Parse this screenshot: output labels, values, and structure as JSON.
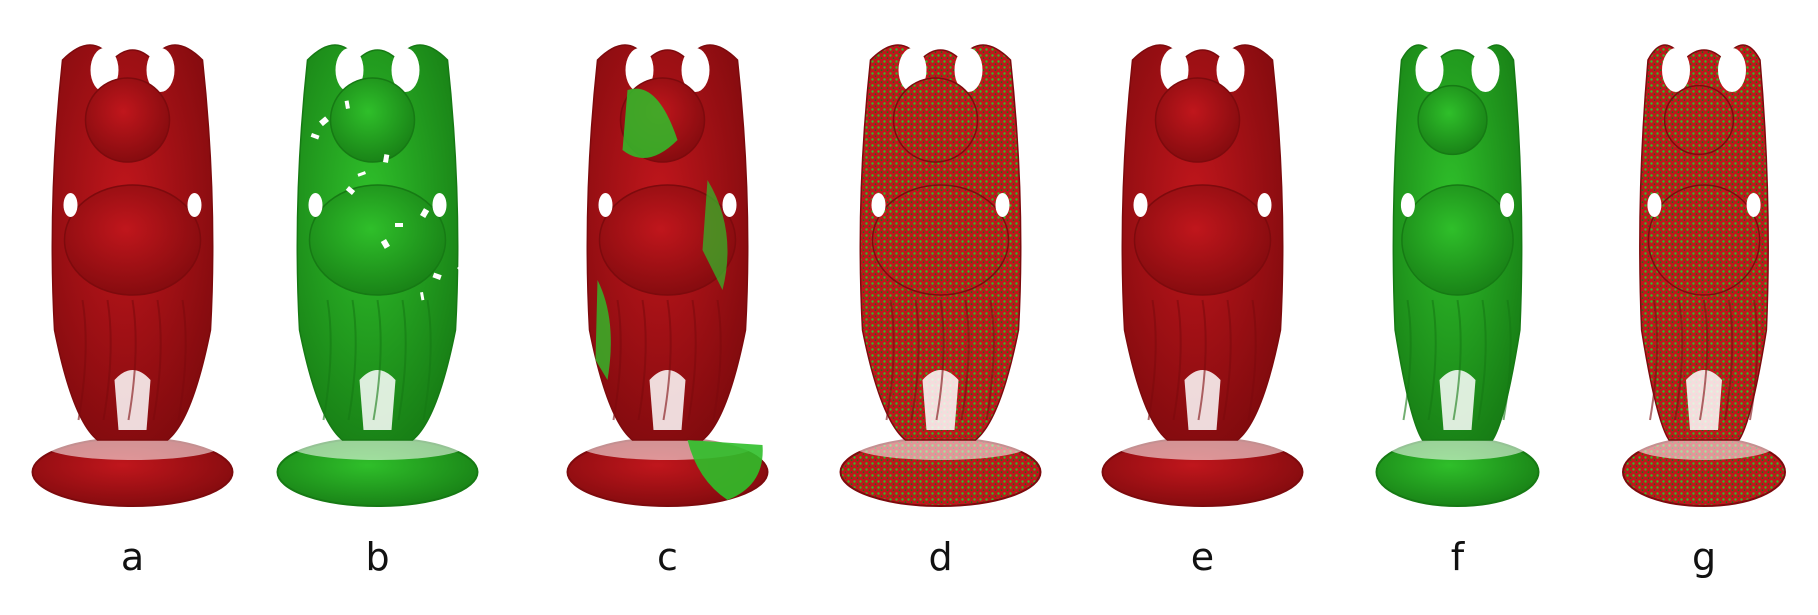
{
  "colors": {
    "red": "#c0161c",
    "red_dark": "#7d0a0d",
    "green": "#2fbf2a",
    "green_dark": "#167a14",
    "background": "#ffffff"
  },
  "figure": {
    "panels": [
      {
        "label": "a",
        "render": "red",
        "view": "front"
      },
      {
        "label": "b",
        "render": "green",
        "view": "oblique-partial"
      },
      {
        "label": "c",
        "render": "red-green-blend",
        "view": "front"
      },
      {
        "label": "d",
        "render": "red-green-speckle",
        "view": "front"
      },
      {
        "label": "e",
        "render": "red",
        "view": "front"
      },
      {
        "label": "f",
        "render": "green",
        "view": "side-robe"
      },
      {
        "label": "g",
        "render": "red-green-speckle",
        "view": "side"
      }
    ]
  }
}
